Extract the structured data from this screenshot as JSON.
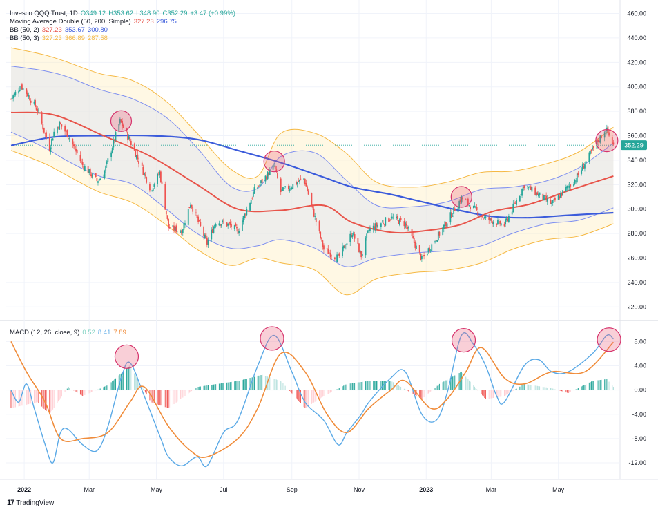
{
  "legend": {
    "symbol": "Invesco QQQ Trust, 1D",
    "open": "O349.12",
    "high": "H353.62",
    "low": "L348.90",
    "close": "C352.29",
    "change": "+3.47 (+0.99%)",
    "ma_label": "Moving Average Double (50, 200, Simple)",
    "ma_fast": "327.23",
    "ma_slow": "296.75",
    "bb2_label": "BB (50, 2)",
    "bb2_basis": "327.23",
    "bb2_upper": "353.67",
    "bb2_lower": "300.80",
    "bb3_label": "BB (50, 3)",
    "bb3_basis": "327.23",
    "bb3_upper": "366.89",
    "bb3_lower": "287.58",
    "macd_label": "MACD (12, 26, close, 9)",
    "macd_hist": "0.52",
    "macd_line": "8.41",
    "macd_signal": "7.89"
  },
  "last_price_label": "352.29",
  "footer": {
    "logo": "17",
    "brand": "TradingView"
  },
  "colors": {
    "up": "#26a69a",
    "down": "#ef5350",
    "ma_fast": "#e8544a",
    "ma_slow": "#3b5bdb",
    "bb2": "#7d8ef0",
    "bb3": "#f5b843",
    "macd": "#5aa9e6",
    "signal": "#f08c3a",
    "circle_fill": "rgba(233,84,110,0.28)",
    "circle_stroke": "#d6336c"
  },
  "chart_data": [
    {
      "type": "candlestick",
      "title": "Invesco QQQ Trust, 1D",
      "x_tick_labels": [
        "2022",
        "Mar",
        "May",
        "Jul",
        "Sep",
        "Nov",
        "2023",
        "Mar",
        "May"
      ],
      "y_tick_labels": [
        "460.00",
        "440.00",
        "420.00",
        "400.00",
        "380.00",
        "360.00",
        "340.00",
        "320.00",
        "300.00",
        "280.00",
        "260.00",
        "240.00",
        "220.00"
      ],
      "ylim": [
        210,
        462
      ],
      "last_price": 352.29,
      "series_note": "daily closes, Dec 2021 - Jun 2023",
      "close_points": [
        [
          "2021-12-20",
          390
        ],
        [
          "2021-12-29",
          401
        ],
        [
          "2022-01-04",
          394
        ],
        [
          "2022-01-13",
          381
        ],
        [
          "2022-01-24",
          350
        ],
        [
          "2022-01-28",
          363
        ],
        [
          "2022-02-02",
          370
        ],
        [
          "2022-02-10",
          360
        ],
        [
          "2022-02-23",
          336
        ],
        [
          "2022-03-08",
          323
        ],
        [
          "2022-03-14",
          328
        ],
        [
          "2022-03-29",
          372
        ],
        [
          "2022-04-07",
          356
        ],
        [
          "2022-04-26",
          316
        ],
        [
          "2022-05-04",
          330
        ],
        [
          "2022-05-12",
          285
        ],
        [
          "2022-05-24",
          282
        ],
        [
          "2022-06-01",
          305
        ],
        [
          "2022-06-16",
          272
        ],
        [
          "2022-06-24",
          290
        ],
        [
          "2022-07-06",
          287
        ],
        [
          "2022-07-14",
          282
        ],
        [
          "2022-07-29",
          315
        ],
        [
          "2022-08-16",
          335
        ],
        [
          "2022-08-22",
          314
        ],
        [
          "2022-09-12",
          325
        ],
        [
          "2022-09-30",
          267
        ],
        [
          "2022-10-13",
          260
        ],
        [
          "2022-10-26",
          281
        ],
        [
          "2022-11-03",
          262
        ],
        [
          "2022-11-10",
          283
        ],
        [
          "2022-11-30",
          293
        ],
        [
          "2022-12-13",
          288
        ],
        [
          "2022-12-28",
          259
        ],
        [
          "2023-01-13",
          280
        ],
        [
          "2023-02-02",
          309
        ],
        [
          "2023-02-24",
          292
        ],
        [
          "2023-03-13",
          287
        ],
        [
          "2023-03-31",
          320
        ],
        [
          "2023-04-25",
          304
        ],
        [
          "2023-05-17",
          325
        ],
        [
          "2023-06-01",
          348
        ],
        [
          "2023-06-13",
          366
        ],
        [
          "2023-06-20",
          352
        ]
      ],
      "ma_fast_points": [
        [
          "2021-12-20",
          379
        ],
        [
          "2022-01-28",
          377
        ],
        [
          "2022-03-14",
          360
        ],
        [
          "2022-04-26",
          343
        ],
        [
          "2022-06-07",
          320
        ],
        [
          "2022-07-14",
          300
        ],
        [
          "2022-08-22",
          299
        ],
        [
          "2022-09-30",
          303
        ],
        [
          "2022-10-26",
          289
        ],
        [
          "2022-11-30",
          281
        ],
        [
          "2022-12-28",
          282
        ],
        [
          "2023-01-31",
          287
        ],
        [
          "2023-03-02",
          298
        ],
        [
          "2023-04-05",
          304
        ],
        [
          "2023-05-10",
          315
        ],
        [
          "2023-06-20",
          327
        ]
      ],
      "ma_slow_points": [
        [
          "2021-12-20",
          352
        ],
        [
          "2022-01-28",
          359
        ],
        [
          "2022-03-14",
          360
        ],
        [
          "2022-04-26",
          360
        ],
        [
          "2022-06-07",
          357
        ],
        [
          "2022-07-14",
          348
        ],
        [
          "2022-08-22",
          338
        ],
        [
          "2022-09-30",
          326
        ],
        [
          "2022-10-26",
          318
        ],
        [
          "2022-11-30",
          312
        ],
        [
          "2022-12-28",
          306
        ],
        [
          "2023-01-31",
          299
        ],
        [
          "2023-03-02",
          294
        ],
        [
          "2023-04-05",
          293
        ],
        [
          "2023-05-10",
          295
        ],
        [
          "2023-06-20",
          297
        ]
      ],
      "bb2_upper_points": [
        [
          "2021-12-20",
          417
        ],
        [
          "2022-01-20",
          413
        ],
        [
          "2022-02-10",
          408
        ],
        [
          "2022-03-10",
          398
        ],
        [
          "2022-04-10",
          390
        ],
        [
          "2022-05-10",
          375
        ],
        [
          "2022-06-07",
          350
        ],
        [
          "2022-07-07",
          319
        ],
        [
          "2022-08-01",
          317
        ],
        [
          "2022-08-22",
          343
        ],
        [
          "2022-09-22",
          346
        ],
        [
          "2022-10-20",
          324
        ],
        [
          "2022-11-17",
          303
        ],
        [
          "2022-12-20",
          302
        ],
        [
          "2023-01-20",
          306
        ],
        [
          "2023-02-20",
          316
        ],
        [
          "2023-03-20",
          318
        ],
        [
          "2023-04-20",
          323
        ],
        [
          "2023-05-20",
          334
        ],
        [
          "2023-06-20",
          354
        ]
      ],
      "bb2_lower_points": [
        [
          "2021-12-20",
          363
        ],
        [
          "2022-01-20",
          350
        ],
        [
          "2022-02-10",
          339
        ],
        [
          "2022-03-10",
          327
        ],
        [
          "2022-04-10",
          320
        ],
        [
          "2022-05-10",
          300
        ],
        [
          "2022-06-07",
          280
        ],
        [
          "2022-07-07",
          268
        ],
        [
          "2022-08-01",
          270
        ],
        [
          "2022-08-22",
          275
        ],
        [
          "2022-09-22",
          268
        ],
        [
          "2022-10-20",
          253
        ],
        [
          "2022-11-17",
          260
        ],
        [
          "2022-12-20",
          264
        ],
        [
          "2023-01-20",
          266
        ],
        [
          "2023-02-20",
          270
        ],
        [
          "2023-03-20",
          280
        ],
        [
          "2023-04-20",
          288
        ],
        [
          "2023-05-20",
          291
        ],
        [
          "2023-06-20",
          301
        ]
      ],
      "bb3_upper_points": [
        [
          "2021-12-20",
          432
        ],
        [
          "2022-01-20",
          426
        ],
        [
          "2022-02-10",
          420
        ],
        [
          "2022-03-10",
          411
        ],
        [
          "2022-04-10",
          405
        ],
        [
          "2022-05-10",
          388
        ],
        [
          "2022-06-07",
          362
        ],
        [
          "2022-07-07",
          333
        ],
        [
          "2022-08-01",
          327
        ],
        [
          "2022-08-22",
          362
        ],
        [
          "2022-09-22",
          362
        ],
        [
          "2022-10-20",
          346
        ],
        [
          "2022-11-17",
          322
        ],
        [
          "2022-12-20",
          318
        ],
        [
          "2023-01-20",
          322
        ],
        [
          "2023-02-20",
          330
        ],
        [
          "2023-03-20",
          331
        ],
        [
          "2023-04-20",
          337
        ],
        [
          "2023-05-20",
          347
        ],
        [
          "2023-06-20",
          367
        ]
      ],
      "bb3_lower_points": [
        [
          "2021-12-20",
          348
        ],
        [
          "2022-01-20",
          337
        ],
        [
          "2022-02-10",
          327
        ],
        [
          "2022-03-10",
          314
        ],
        [
          "2022-04-10",
          305
        ],
        [
          "2022-05-10",
          287
        ],
        [
          "2022-06-07",
          267
        ],
        [
          "2022-07-07",
          254
        ],
        [
          "2022-08-01",
          260
        ],
        [
          "2022-08-22",
          256
        ],
        [
          "2022-09-22",
          250
        ],
        [
          "2022-10-20",
          230
        ],
        [
          "2022-11-17",
          243
        ],
        [
          "2022-12-20",
          248
        ],
        [
          "2023-01-20",
          250
        ],
        [
          "2023-02-20",
          256
        ],
        [
          "2023-03-20",
          267
        ],
        [
          "2023-04-20",
          275
        ],
        [
          "2023-05-20",
          278
        ],
        [
          "2023-06-20",
          288
        ]
      ]
    },
    {
      "type": "line",
      "title": "MACD (12, 26, close, 9)",
      "y_tick_labels": [
        "8.00",
        "4.00",
        "0.00",
        "-4.00",
        "-8.00",
        "-12.00"
      ],
      "ylim": [
        -14.5,
        11
      ],
      "macd_points": [
        [
          "2021-12-20",
          0
        ],
        [
          "2021-12-27",
          -2
        ],
        [
          "2022-01-03",
          1
        ],
        [
          "2022-01-10",
          -3
        ],
        [
          "2022-01-20",
          -9
        ],
        [
          "2022-01-27",
          -12
        ],
        [
          "2022-02-03",
          -7
        ],
        [
          "2022-02-10",
          -6.5
        ],
        [
          "2022-02-23",
          -9
        ],
        [
          "2022-03-08",
          -10
        ],
        [
          "2022-03-18",
          -6
        ],
        [
          "2022-03-30",
          2
        ],
        [
          "2022-04-07",
          4.5
        ],
        [
          "2022-04-20",
          -1
        ],
        [
          "2022-05-05",
          -8
        ],
        [
          "2022-05-12",
          -11
        ],
        [
          "2022-05-24",
          -12.5
        ],
        [
          "2022-06-07",
          -11
        ],
        [
          "2022-06-16",
          -12.5
        ],
        [
          "2022-07-01",
          -7
        ],
        [
          "2022-07-14",
          -5
        ],
        [
          "2022-08-01",
          4
        ],
        [
          "2022-08-16",
          9
        ],
        [
          "2022-09-01",
          3
        ],
        [
          "2022-09-13",
          -2
        ],
        [
          "2022-09-30",
          -5
        ],
        [
          "2022-10-13",
          -9
        ],
        [
          "2022-10-21",
          -7
        ],
        [
          "2022-11-03",
          -4
        ],
        [
          "2022-11-10",
          -2
        ],
        [
          "2022-11-30",
          2
        ],
        [
          "2022-12-13",
          3
        ],
        [
          "2022-12-28",
          -4
        ],
        [
          "2023-01-10",
          -5
        ],
        [
          "2023-01-20",
          -0.5
        ],
        [
          "2023-02-02",
          9
        ],
        [
          "2023-02-13",
          7.5
        ],
        [
          "2023-02-24",
          4
        ],
        [
          "2023-03-06",
          -1
        ],
        [
          "2023-03-13",
          -2
        ],
        [
          "2023-03-31",
          4
        ],
        [
          "2023-04-13",
          5
        ],
        [
          "2023-04-25",
          3
        ],
        [
          "2023-05-10",
          3
        ],
        [
          "2023-06-01",
          6
        ],
        [
          "2023-06-14",
          9
        ],
        [
          "2023-06-20",
          8.41
        ]
      ],
      "signal_points": [
        [
          "2021-12-20",
          8
        ],
        [
          "2022-01-03",
          3
        ],
        [
          "2022-01-20",
          -2
        ],
        [
          "2022-02-03",
          -8
        ],
        [
          "2022-02-23",
          -8
        ],
        [
          "2022-03-18",
          -7
        ],
        [
          "2022-04-07",
          -2
        ],
        [
          "2022-04-20",
          0.5
        ],
        [
          "2022-05-12",
          -6
        ],
        [
          "2022-06-01",
          -10
        ],
        [
          "2022-06-16",
          -11
        ],
        [
          "2022-07-14",
          -8
        ],
        [
          "2022-08-01",
          -3
        ],
        [
          "2022-08-22",
          6
        ],
        [
          "2022-09-13",
          3
        ],
        [
          "2022-10-03",
          -4
        ],
        [
          "2022-10-21",
          -7
        ],
        [
          "2022-11-10",
          -3
        ],
        [
          "2022-11-30",
          0
        ],
        [
          "2022-12-13",
          1.5
        ],
        [
          "2023-01-05",
          -3
        ],
        [
          "2023-01-20",
          -1.5
        ],
        [
          "2023-02-06",
          3
        ],
        [
          "2023-02-20",
          7
        ],
        [
          "2023-03-13",
          2
        ],
        [
          "2023-03-31",
          1
        ],
        [
          "2023-04-25",
          3
        ],
        [
          "2023-05-25",
          3
        ],
        [
          "2023-06-20",
          7.89
        ]
      ],
      "histogram_points": [
        [
          "2021-12-20",
          -3
        ],
        [
          "2022-01-13",
          -2
        ],
        [
          "2022-01-24",
          -4
        ],
        [
          "2022-02-10",
          0.5
        ],
        [
          "2022-02-23",
          -1
        ],
        [
          "2022-03-18",
          0.8
        ],
        [
          "2022-04-07",
          4
        ],
        [
          "2022-04-26",
          -2
        ],
        [
          "2022-05-12",
          -3
        ],
        [
          "2022-06-07",
          0.5
        ],
        [
          "2022-07-14",
          1.5
        ],
        [
          "2022-08-05",
          2.5
        ],
        [
          "2022-08-22",
          1.5
        ],
        [
          "2022-09-13",
          -3
        ],
        [
          "2022-09-30",
          -1
        ],
        [
          "2022-10-21",
          1
        ],
        [
          "2022-11-10",
          1.5
        ],
        [
          "2022-11-30",
          1.5
        ],
        [
          "2022-12-28",
          -1.5
        ],
        [
          "2023-01-13",
          1
        ],
        [
          "2023-02-02",
          3
        ],
        [
          "2023-02-24",
          -1.5
        ],
        [
          "2023-03-13",
          -1
        ],
        [
          "2023-03-31",
          1
        ],
        [
          "2023-04-25",
          0.3
        ],
        [
          "2023-05-10",
          -0.5
        ],
        [
          "2023-06-01",
          1.5
        ],
        [
          "2023-06-14",
          1.8
        ],
        [
          "2023-06-20",
          0.52
        ]
      ]
    }
  ]
}
